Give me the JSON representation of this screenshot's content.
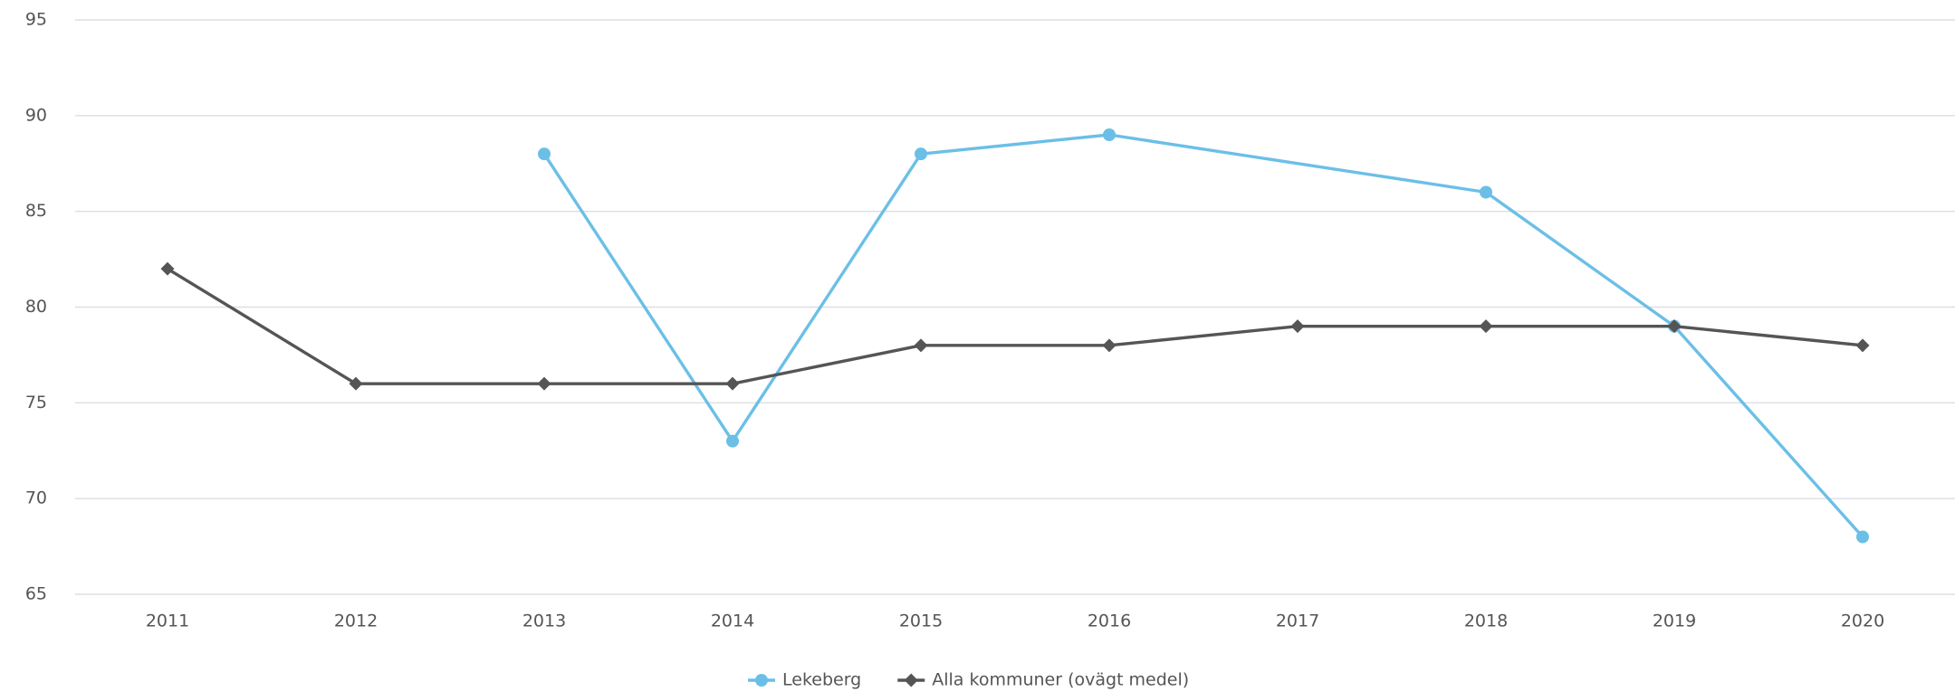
{
  "chart_data": {
    "type": "line",
    "categories": [
      "2011",
      "2012",
      "2013",
      "2014",
      "2015",
      "2016",
      "2017",
      "2018",
      "2019",
      "2020"
    ],
    "series": [
      {
        "name": "Lekeberg",
        "color": "#6bbfe6",
        "marker": "circle",
        "values": [
          null,
          null,
          88,
          73,
          88,
          89,
          null,
          86,
          79,
          68
        ]
      },
      {
        "name": "Alla kommuner (ovägt medel)",
        "color": "#555555",
        "marker": "diamond",
        "values": [
          82,
          76,
          76,
          76,
          78,
          78,
          79,
          79,
          79,
          78
        ]
      }
    ],
    "connect_nulls": true,
    "ylim": [
      65,
      95
    ],
    "yticks": [
      65,
      70,
      75,
      80,
      85,
      90,
      95
    ],
    "grid": true
  }
}
